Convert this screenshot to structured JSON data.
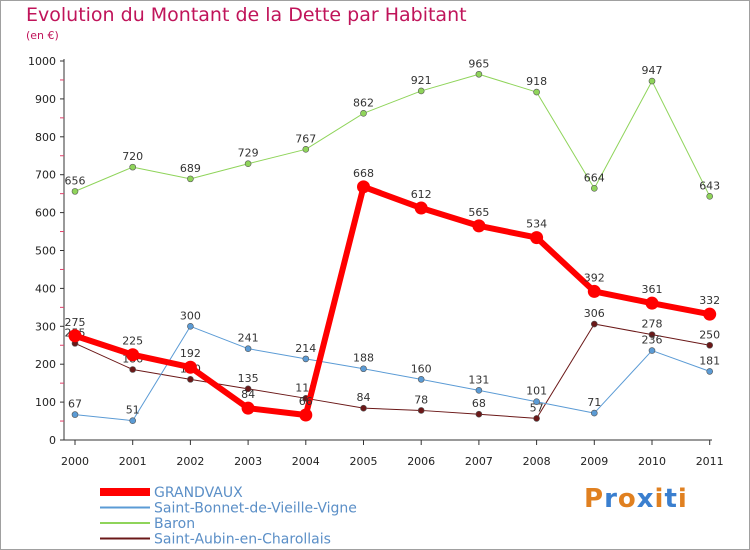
{
  "title": "Evolution du Montant de la Dette par Habitant",
  "unit": "(en €)",
  "logo": {
    "text": "Proxiti",
    "letter_colors": [
      "#e08020",
      "#3a7fcf",
      "#e08020",
      "#3a7fcf",
      "#e08020",
      "#3a7fcf",
      "#e08020"
    ]
  },
  "chart_data": {
    "type": "line",
    "title": "Evolution du Montant de la Dette par Habitant",
    "xlabel": "",
    "ylabel": "(en €)",
    "x": [
      "2000",
      "2001",
      "2002",
      "2003",
      "2004",
      "2005",
      "2006",
      "2007",
      "2008",
      "2009",
      "2010",
      "2011"
    ],
    "ylim": [
      0,
      1000
    ],
    "yticks": [
      0,
      100,
      200,
      300,
      400,
      500,
      600,
      700,
      800,
      900,
      1000
    ],
    "grid": false,
    "legend_position": "bottom-left",
    "series": [
      {
        "name": "Saint-Aubin-en-Charollais",
        "color": "#6b1818",
        "width": 1,
        "values": [
          255,
          186,
          160,
          135,
          110,
          84,
          78,
          68,
          57,
          306,
          278,
          250
        ]
      },
      {
        "name": "Baron",
        "color": "#8fd45a",
        "width": 1,
        "values": [
          656,
          720,
          689,
          729,
          767,
          862,
          921,
          965,
          918,
          664,
          947,
          643
        ]
      },
      {
        "name": "Saint-Bonnet-de-Vieille-Vigne",
        "color": "#5b9bd5",
        "width": 1,
        "values": [
          67,
          51,
          300,
          241,
          214,
          188,
          160,
          131,
          101,
          71,
          236,
          181
        ]
      },
      {
        "name": "GRANDVAUX",
        "color": "#ff0000",
        "width": 6,
        "values": [
          275,
          225,
          192,
          84,
          66,
          668,
          612,
          565,
          534,
          392,
          361,
          332
        ]
      }
    ],
    "legend_order": [
      "GRANDVAUX",
      "Saint-Bonnet-de-Vieille-Vigne",
      "Baron",
      "Saint-Aubin-en-Charollais"
    ]
  }
}
